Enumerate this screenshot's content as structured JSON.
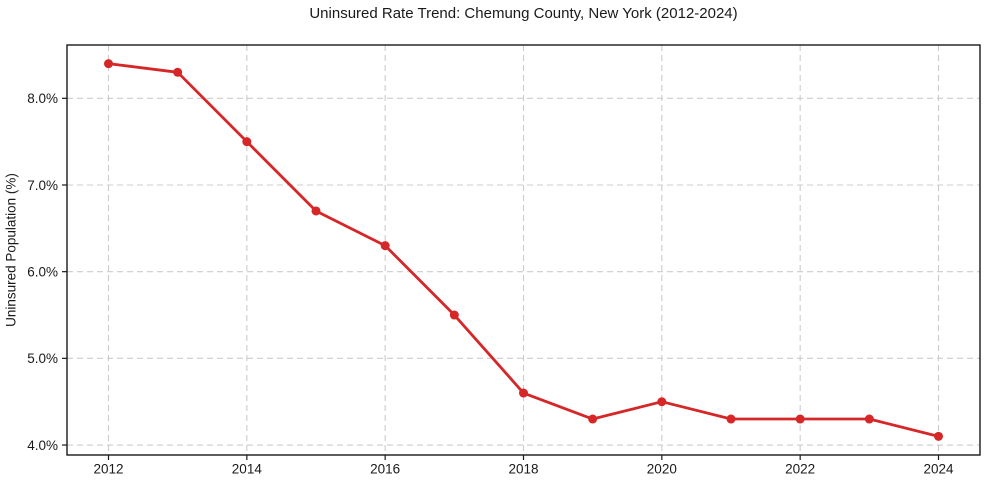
{
  "chart_data": {
    "type": "line",
    "title": "Uninsured Rate Trend: Chemung County, New York (2012-2024)",
    "xlabel": "",
    "ylabel": "Uninsured Population (%)",
    "x": [
      2012,
      2013,
      2014,
      2015,
      2016,
      2017,
      2018,
      2019,
      2020,
      2021,
      2022,
      2023,
      2024
    ],
    "values": [
      8.4,
      8.3,
      7.5,
      6.7,
      6.3,
      5.5,
      4.6,
      4.3,
      4.5,
      4.3,
      4.3,
      4.3,
      4.1
    ],
    "xticks": [
      2012,
      2014,
      2016,
      2018,
      2020,
      2022,
      2024
    ],
    "xtick_labels": [
      "2012",
      "2014",
      "2016",
      "2018",
      "2020",
      "2022",
      "2024"
    ],
    "yticks": [
      4.0,
      5.0,
      6.0,
      7.0,
      8.0
    ],
    "ytick_labels": [
      "4.0%",
      "5.0%",
      "6.0%",
      "7.0%",
      "8.0%"
    ],
    "xlim": [
      2011.4,
      2024.6
    ],
    "ylim": [
      3.885,
      8.615
    ],
    "grid": true,
    "legend": "none",
    "line_color": "#d62728",
    "marker": "circle",
    "grid_color": "#cccccc",
    "spine_color": "#1a1a1a",
    "background_color": "#ffffff"
  }
}
